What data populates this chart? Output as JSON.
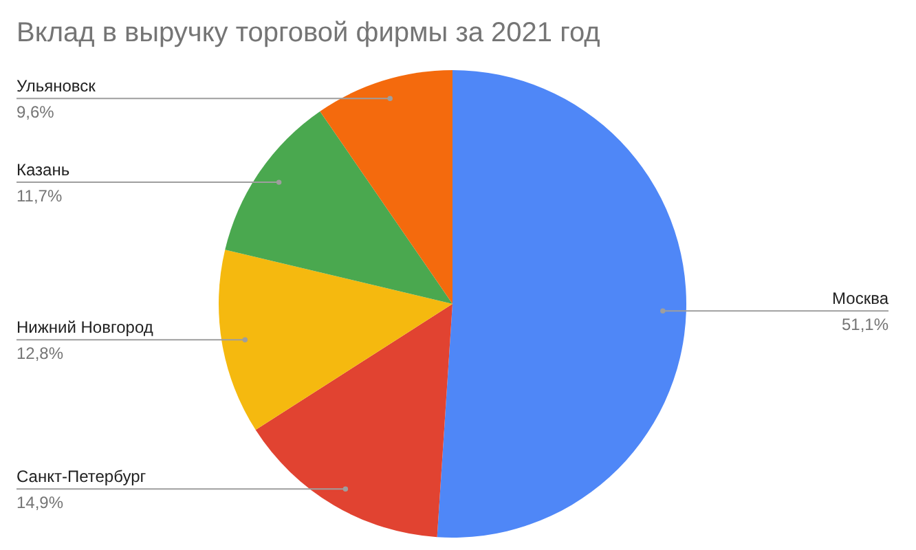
{
  "chart_data": {
    "type": "pie",
    "title": "Вклад в выручку торговой фирмы за 2021 год",
    "categories": [
      "Москва",
      "Санкт-Петербург",
      "Нижний Новгород",
      "Казань",
      "Ульяновск"
    ],
    "values": [
      51.1,
      14.9,
      12.8,
      11.7,
      9.6
    ],
    "colors": [
      "#4f87f7",
      "#e14331",
      "#f5b90f",
      "#4aa84f",
      "#f46a0d"
    ],
    "value_labels": [
      "51,1%",
      "14,9%",
      "12,8%",
      "11,7%",
      "9,6%"
    ]
  }
}
